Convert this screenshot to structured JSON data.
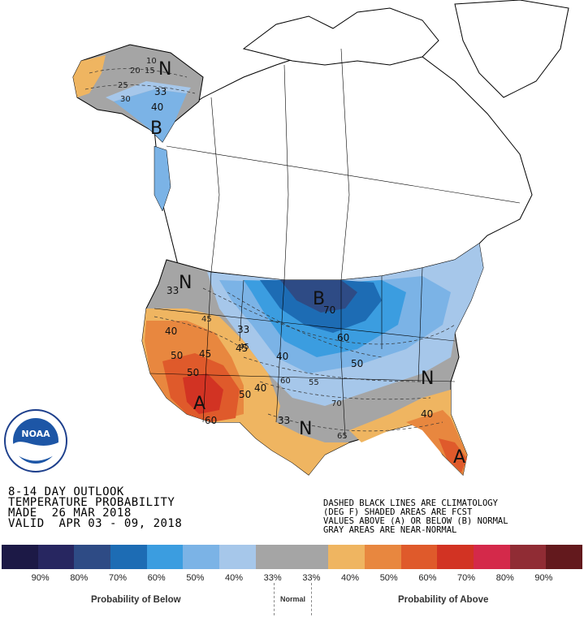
{
  "info": {
    "line1": "8-14 DAY OUTLOOK",
    "line2": "TEMPERATURE PROBABILITY",
    "line3": "MADE  26 MAR 2018",
    "line4": "VALID  APR 03 - 09, 2018"
  },
  "notes": {
    "line1": "DASHED BLACK LINES ARE CLIMATOLOGY",
    "line2": "(DEG F) SHADED AREAS ARE FCST",
    "line3": "VALUES ABOVE (A) OR BELOW (B) NORMAL",
    "line4": "GRAY AREAS ARE NEAR-NORMAL"
  },
  "logo": {
    "text": "NOAA"
  },
  "colorbar": {
    "colors": [
      "#1c1946",
      "#272660",
      "#2e4b85",
      "#1d6cb4",
      "#3b9de0",
      "#7bb3e6",
      "#a6c7ea",
      "#a5a5a5",
      "#a5a5a5",
      "#efb561",
      "#e8873f",
      "#df5a2b",
      "#d23323",
      "#d4294a",
      "#902c34",
      "#63191d"
    ],
    "ticks": [
      "90%",
      "80%",
      "70%",
      "60%",
      "50%",
      "40%",
      "33%",
      "33%",
      "40%",
      "50%",
      "60%",
      "70%",
      "80%",
      "90%"
    ],
    "below_label": "Probability of Below",
    "normal_label": "Normal",
    "above_label": "Probability of Above"
  },
  "map": {
    "letters": [
      "N",
      "B",
      "N",
      "B",
      "A",
      "N",
      "N",
      "A"
    ],
    "prob_labels": [
      "33",
      "40",
      "33",
      "40",
      "50",
      "60",
      "70",
      "40",
      "50",
      "60",
      "33",
      "40",
      "50",
      "40",
      "45",
      "50",
      "45",
      "33"
    ],
    "climatology_labels": [
      "10",
      "15",
      "20",
      "25",
      "30",
      "45",
      "45",
      "55",
      "60",
      "65",
      "70"
    ]
  }
}
